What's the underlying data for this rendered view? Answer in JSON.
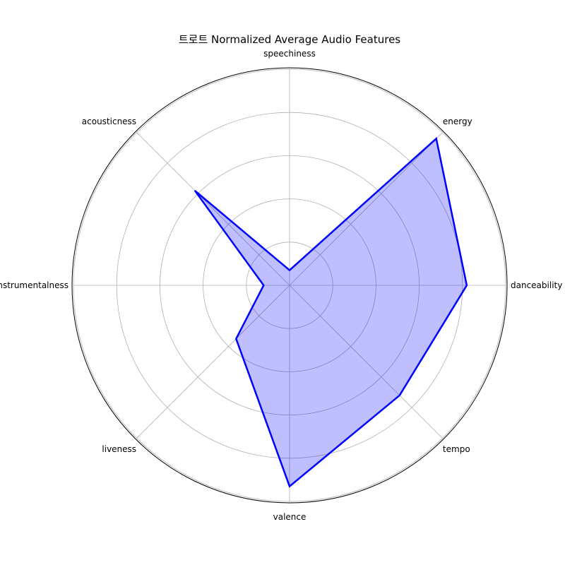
{
  "chart_data": {
    "type": "radar",
    "title": "트로트 Normalized Average Audio Features",
    "categories": [
      "danceability",
      "energy",
      "speechiness",
      "acousticness",
      "instrumentalness",
      "liveness",
      "valence",
      "tempo"
    ],
    "series": [
      {
        "values": [
          0.82,
          0.96,
          0.07,
          0.62,
          0.12,
          0.35,
          0.93,
          0.72
        ]
      }
    ],
    "rlim": [
      0,
      1
    ],
    "r_gridlines": [
      0.2,
      0.4,
      0.6,
      0.8,
      1.0
    ],
    "grid": true,
    "line_color": "#0000ff",
    "fill_color": "#0000ff",
    "fill_opacity": 0.25
  }
}
